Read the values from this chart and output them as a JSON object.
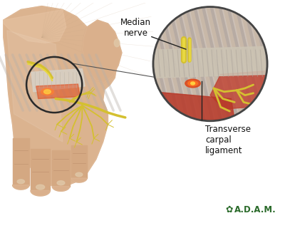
{
  "background_color": "#ffffff",
  "label1": "Median\nnerve",
  "label2": "Transverse\ncarpal\nligament",
  "adam_text": "A.D.A.M.",
  "adam_color": "#2a6a2a",
  "label_color": "#111111",
  "annotation_line_color": "#222222",
  "skin_light": "#e8c5a5",
  "skin_mid": "#d4a882",
  "skin_dark": "#c09070",
  "skin_shadow": "#a87858",
  "nerve_yellow": "#d4c030",
  "nerve_yellow2": "#e8d840",
  "ligament_gray": "#c8c0b0",
  "ligament_light": "#ddd8cc",
  "muscle_red": "#c04030",
  "muscle_dark": "#903020",
  "tendon_gray": "#b0a8a0",
  "circle_color": "#2a2a2a",
  "zoom_circle_color": "#444444",
  "fig_width": 4.0,
  "fig_height": 3.2,
  "dpi": 100
}
